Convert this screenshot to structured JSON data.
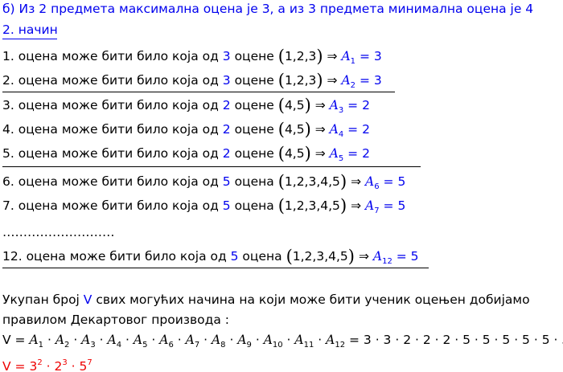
{
  "header": {
    "title": "б) Из 2 предмета максимална оцена је 3, а из 3 предмета минимална оцена је 4",
    "method": "2. начин"
  },
  "lines": [
    {
      "prefix": "1. оцена може бити било која од ",
      "count": "3",
      "word": " оцене ",
      "set": "1,2,3",
      "sub": "1",
      "value": "3"
    },
    {
      "prefix": "2. оцена може бити било која од ",
      "count": "3",
      "word": " оцене ",
      "set": "1,2,3",
      "sub": "2",
      "value": "3"
    },
    {
      "prefix": "3. оцена може бити било која од ",
      "count": "2",
      "word": " оцене ",
      "set": "4,5",
      "sub": "3",
      "value": "2"
    },
    {
      "prefix": "4. оцена може бити било која од ",
      "count": "2",
      "word": " оцене ",
      "set": "4,5",
      "sub": "4",
      "value": "2"
    },
    {
      "prefix": "5. оцена може бити било која од ",
      "count": "2",
      "word": " оцене ",
      "set": "4,5",
      "sub": "5",
      "value": "2"
    },
    {
      "prefix": "6. оцена може бити било која од ",
      "count": "5",
      "word": " оцена ",
      "set": "1,2,3,4,5",
      "sub": "6",
      "value": "5"
    },
    {
      "prefix": "7. оцена може бити било која од ",
      "count": "5",
      "word": " оцена ",
      "set": "1,2,3,4,5",
      "sub": "7",
      "value": "5"
    },
    {
      "prefix": "12. оцена може бити било која од ",
      "count": "5",
      "word": " оцена ",
      "set": "1,2,3,4,5",
      "sub": "12",
      "value": "5"
    }
  ],
  "ellipsis": "………………………",
  "summary": {
    "line1_a": "Укупан број ",
    "line1_v": "V",
    "line1_b": " свих могућих начина на који може бити ученик оцењен добијамо",
    "line2": "правилом Декартовог производа :",
    "formula_lhs": "V = ",
    "formula_subs": [
      "1",
      "2",
      "3",
      "4",
      "5",
      "6",
      "7",
      "8",
      "9",
      "10",
      "11",
      "12"
    ],
    "formula_rhs": "= 3 · 3 · 2 · 2 · 2 · 5 · 5 · 5 · 5 · 5 · 5 · 5",
    "result": {
      "lhs": "V = ",
      "terms": [
        {
          "base": "3",
          "exp": "2"
        },
        {
          "base": "2",
          "exp": "3"
        },
        {
          "base": "5",
          "exp": "7"
        }
      ]
    }
  },
  "colors": {
    "accent": "#0000ee",
    "result": "#ee0000"
  }
}
